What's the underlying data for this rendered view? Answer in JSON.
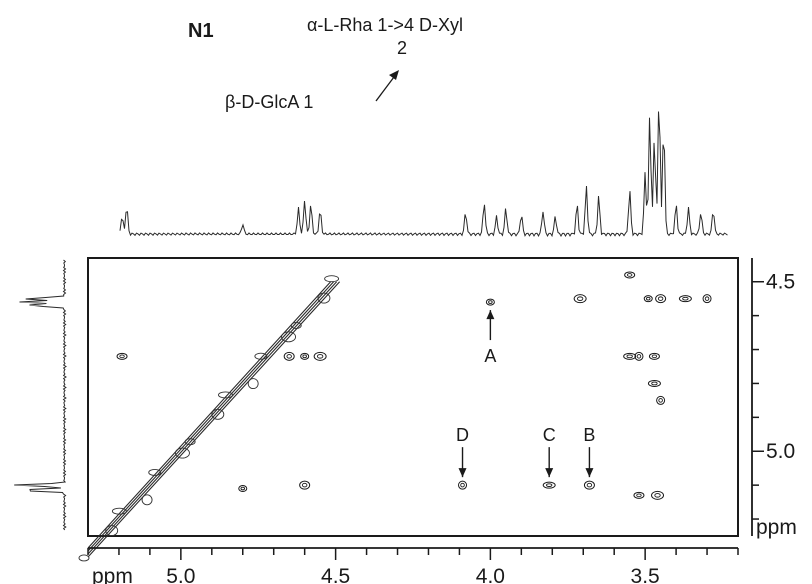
{
  "figure": {
    "label": "N1",
    "structure": {
      "line1": "α-L-Rha 1->4 D-Xyl",
      "position": "2",
      "line2": "β-D-GlcA 1"
    }
  },
  "chart_data": {
    "type": "scatter",
    "subtype": "2D NMR homonuclear correlation spectrum",
    "x_axis": {
      "range": [
        5.3,
        3.2
      ],
      "reversed": true,
      "ticks": [
        "5.0",
        "4.5",
        "4.0",
        "3.5"
      ],
      "tick_values": [
        5.0,
        4.5,
        4.0,
        3.5
      ],
      "label": "ppm"
    },
    "y_axis": {
      "range": [
        4.43,
        5.25
      ],
      "reversed": true,
      "ticks": [
        "4.5",
        "5.0"
      ],
      "tick_values": [
        4.5,
        5.0
      ],
      "label": "ppm",
      "side": "right"
    },
    "annotations": [
      {
        "label": "A",
        "x": 4.0,
        "y": 4.56,
        "arrow": "up"
      },
      {
        "label": "B",
        "x": 3.68,
        "y": 5.1,
        "arrow": "down"
      },
      {
        "label": "C",
        "x": 3.81,
        "y": 5.1,
        "arrow": "down"
      },
      {
        "label": "D",
        "x": 4.09,
        "y": 5.1,
        "arrow": "down"
      }
    ],
    "cross_peaks": [
      {
        "x": 4.0,
        "y": 4.56
      },
      {
        "x": 3.68,
        "y": 5.1
      },
      {
        "x": 3.81,
        "y": 5.1
      },
      {
        "x": 4.09,
        "y": 5.1
      },
      {
        "x": 5.19,
        "y": 4.72
      },
      {
        "x": 4.55,
        "y": 4.72
      },
      {
        "x": 4.6,
        "y": 4.72
      },
      {
        "x": 4.65,
        "y": 4.72
      },
      {
        "x": 3.55,
        "y": 4.72
      },
      {
        "x": 3.52,
        "y": 4.72
      },
      {
        "x": 3.47,
        "y": 4.72
      },
      {
        "x": 3.71,
        "y": 4.55
      },
      {
        "x": 3.49,
        "y": 4.55
      },
      {
        "x": 3.45,
        "y": 4.55
      },
      {
        "x": 3.37,
        "y": 4.55
      },
      {
        "x": 3.3,
        "y": 4.55
      },
      {
        "x": 3.52,
        "y": 5.13
      },
      {
        "x": 3.46,
        "y": 5.13
      },
      {
        "x": 4.8,
        "y": 5.11
      },
      {
        "x": 4.6,
        "y": 5.1
      },
      {
        "x": 3.47,
        "y": 4.8
      },
      {
        "x": 3.45,
        "y": 4.85
      },
      {
        "x": 3.55,
        "y": 4.48
      }
    ],
    "diagonal": {
      "from": 5.3,
      "to": 4.5
    },
    "grid": false
  }
}
